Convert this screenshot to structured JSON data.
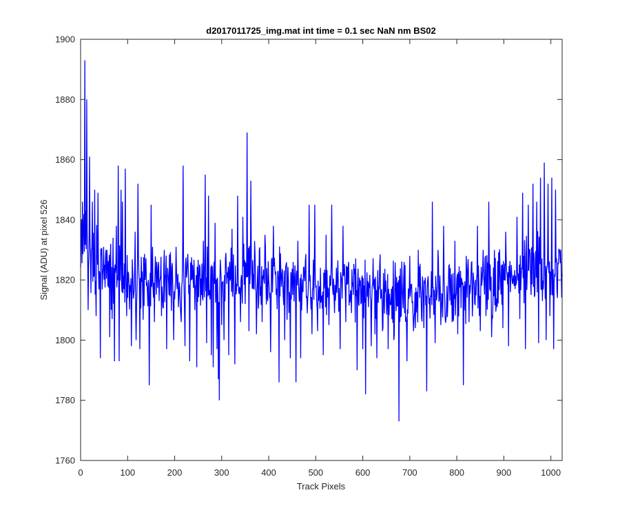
{
  "colors": {
    "background": "#ffffff",
    "axes": "#262626",
    "series": "#0000ff"
  },
  "chart_data": {
    "type": "line",
    "title": "d2017011725_img.mat int time = 0.1 sec  NaN nm BS02",
    "xlabel": "Track Pixels",
    "ylabel": "Signal (ADU) at pixel 526",
    "xlim": [
      0,
      1024
    ],
    "ylim": [
      1760,
      1900
    ],
    "xticks": [
      0,
      100,
      200,
      300,
      400,
      500,
      600,
      700,
      800,
      900,
      1000
    ],
    "yticks": [
      1760,
      1780,
      1800,
      1820,
      1840,
      1860,
      1880,
      1900
    ],
    "grid": false,
    "box": true,
    "series": [
      {
        "color": "#0000ff",
        "noise_seed": 20170117,
        "noise_amplitude": 10,
        "baseline": [
          [
            0,
            1834
          ],
          [
            60,
            1821
          ],
          [
            150,
            1820
          ],
          [
            250,
            1819
          ],
          [
            350,
            1822
          ],
          [
            450,
            1819
          ],
          [
            550,
            1818
          ],
          [
            650,
            1815
          ],
          [
            750,
            1816
          ],
          [
            850,
            1817
          ],
          [
            950,
            1823
          ],
          [
            1024,
            1823
          ]
        ],
        "visible_peaks": [
          [
            4,
            1846
          ],
          [
            9,
            1893
          ],
          [
            11,
            1843
          ],
          [
            13,
            1880
          ],
          [
            16,
            1810
          ],
          [
            19,
            1861
          ],
          [
            25,
            1846
          ],
          [
            30,
            1850
          ],
          [
            33,
            1808
          ],
          [
            37,
            1849
          ],
          [
            42,
            1794
          ],
          [
            49,
            1831
          ],
          [
            56,
            1830
          ],
          [
            62,
            1801
          ],
          [
            64,
            1832
          ],
          [
            67,
            1807
          ],
          [
            69,
            1834
          ],
          [
            72,
            1793
          ],
          [
            76,
            1838
          ],
          [
            80,
            1858
          ],
          [
            82,
            1793
          ],
          [
            86,
            1850
          ],
          [
            89,
            1846
          ],
          [
            95,
            1857
          ],
          [
            98,
            1808
          ],
          [
            106,
            1816
          ],
          [
            108,
            1798
          ],
          [
            116,
            1836
          ],
          [
            118,
            1800
          ],
          [
            122,
            1852
          ],
          [
            126,
            1797
          ],
          [
            132,
            1816
          ],
          [
            140,
            1818
          ],
          [
            146,
            1785
          ],
          [
            150,
            1845
          ],
          [
            153,
            1831
          ],
          [
            157,
            1806
          ],
          [
            162,
            1826
          ],
          [
            167,
            1813
          ],
          [
            172,
            1808
          ],
          [
            178,
            1830
          ],
          [
            183,
            1797
          ],
          [
            188,
            1815
          ],
          [
            192,
            1822
          ],
          [
            198,
            1800
          ],
          [
            203,
            1831
          ],
          [
            208,
            1811
          ],
          [
            214,
            1806
          ],
          [
            218,
            1858
          ],
          [
            222,
            1798
          ],
          [
            226,
            1822
          ],
          [
            232,
            1793
          ],
          [
            238,
            1825
          ],
          [
            243,
            1810
          ],
          [
            247,
            1791
          ],
          [
            252,
            1821
          ],
          [
            257,
            1815
          ],
          [
            261,
            1833
          ],
          [
            265,
            1855
          ],
          [
            268,
            1799
          ],
          [
            272,
            1848
          ],
          [
            278,
            1795
          ],
          [
            282,
            1791
          ],
          [
            286,
            1839
          ],
          [
            290,
            1797
          ],
          [
            293,
            1787
          ],
          [
            295,
            1780
          ],
          [
            300,
            1805
          ],
          [
            305,
            1800
          ],
          [
            309,
            1829
          ],
          [
            315,
            1795
          ],
          [
            322,
            1837
          ],
          [
            328,
            1792
          ],
          [
            334,
            1848
          ],
          [
            340,
            1806
          ],
          [
            345,
            1841
          ],
          [
            350,
            1812
          ],
          [
            354,
            1869
          ],
          [
            358,
            1803
          ],
          [
            362,
            1853
          ],
          [
            368,
            1822
          ],
          [
            374,
            1802
          ],
          [
            380,
            1830
          ],
          [
            386,
            1806
          ],
          [
            392,
            1835
          ],
          [
            398,
            1813
          ],
          [
            404,
            1796
          ],
          [
            410,
            1838
          ],
          [
            416,
            1815
          ],
          [
            422,
            1786
          ],
          [
            428,
            1822
          ],
          [
            434,
            1800
          ],
          [
            440,
            1818
          ],
          [
            446,
            1794
          ],
          [
            452,
            1826
          ],
          [
            458,
            1786
          ],
          [
            462,
            1833
          ],
          [
            468,
            1794
          ],
          [
            474,
            1824
          ],
          [
            480,
            1814
          ],
          [
            486,
            1845
          ],
          [
            492,
            1802
          ],
          [
            498,
            1845
          ],
          [
            504,
            1803
          ],
          [
            510,
            1824
          ],
          [
            516,
            1795
          ],
          [
            522,
            1835
          ],
          [
            528,
            1805
          ],
          [
            534,
            1845
          ],
          [
            540,
            1809
          ],
          [
            546,
            1820
          ],
          [
            552,
            1797
          ],
          [
            558,
            1838
          ],
          [
            564,
            1806
          ],
          [
            570,
            1826
          ],
          [
            576,
            1809
          ],
          [
            582,
            1822
          ],
          [
            588,
            1790
          ],
          [
            594,
            1818
          ],
          [
            600,
            1797
          ],
          [
            606,
            1782
          ],
          [
            612,
            1811
          ],
          [
            618,
            1798
          ],
          [
            624,
            1817
          ],
          [
            630,
            1794
          ],
          [
            636,
            1825
          ],
          [
            642,
            1803
          ],
          [
            648,
            1816
          ],
          [
            654,
            1797
          ],
          [
            660,
            1812
          ],
          [
            666,
            1800
          ],
          [
            672,
            1821
          ],
          [
            677,
            1773
          ],
          [
            682,
            1808
          ],
          [
            688,
            1826
          ],
          [
            694,
            1793
          ],
          [
            700,
            1828
          ],
          [
            706,
            1813
          ],
          [
            712,
            1804
          ],
          [
            718,
            1830
          ],
          [
            724,
            1815
          ],
          [
            730,
            1804
          ],
          [
            736,
            1783
          ],
          [
            742,
            1814
          ],
          [
            748,
            1846
          ],
          [
            754,
            1799
          ],
          [
            760,
            1830
          ],
          [
            766,
            1805
          ],
          [
            772,
            1838
          ],
          [
            778,
            1810
          ],
          [
            784,
            1825
          ],
          [
            790,
            1806
          ],
          [
            796,
            1833
          ],
          [
            802,
            1802
          ],
          [
            808,
            1823
          ],
          [
            814,
            1785
          ],
          [
            820,
            1828
          ],
          [
            826,
            1806
          ],
          [
            832,
            1826
          ],
          [
            838,
            1812
          ],
          [
            844,
            1838
          ],
          [
            850,
            1803
          ],
          [
            856,
            1830
          ],
          [
            862,
            1808
          ],
          [
            868,
            1846
          ],
          [
            874,
            1801
          ],
          [
            880,
            1830
          ],
          [
            886,
            1811
          ],
          [
            892,
            1823
          ],
          [
            898,
            1804
          ],
          [
            904,
            1836
          ],
          [
            910,
            1798
          ],
          [
            916,
            1825
          ],
          [
            922,
            1818
          ],
          [
            928,
            1841
          ],
          [
            934,
            1807
          ],
          [
            940,
            1849
          ],
          [
            946,
            1797
          ],
          [
            952,
            1845
          ],
          [
            958,
            1815
          ],
          [
            962,
            1852
          ],
          [
            966,
            1815
          ],
          [
            970,
            1846
          ],
          [
            974,
            1799
          ],
          [
            978,
            1854
          ],
          [
            982,
            1813
          ],
          [
            986,
            1859
          ],
          [
            990,
            1800
          ],
          [
            994,
            1852
          ],
          [
            998,
            1808
          ],
          [
            1002,
            1854
          ],
          [
            1006,
            1797
          ],
          [
            1010,
            1850
          ],
          [
            1014,
            1814
          ],
          [
            1018,
            1830
          ],
          [
            1022,
            1824
          ]
        ]
      }
    ]
  }
}
